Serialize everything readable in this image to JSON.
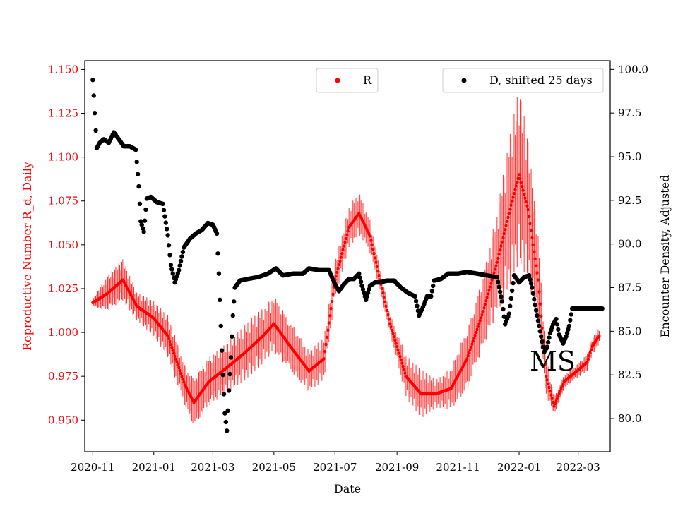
{
  "chart_data": {
    "type": "scatter",
    "xlabel": "Date",
    "ylabel_left": "Reproductive Number R_d, Daily",
    "ylabel_right": "Encounter Density, Adjusted",
    "ylim_left": [
      0.932,
      1.155
    ],
    "ylim_right": [
      78.1,
      100.5
    ],
    "xlim_days_from_start": [
      -8,
      517
    ],
    "left_axis_color": "#ff0000",
    "left_ticks": [
      "0.950",
      "0.975",
      "1.000",
      "1.025",
      "1.050",
      "1.075",
      "1.100",
      "1.125",
      "1.150"
    ],
    "right_ticks": [
      "80.0",
      "82.5",
      "85.0",
      "87.5",
      "90.0",
      "92.5",
      "95.0",
      "97.5",
      "100.0"
    ],
    "x_tick_labels": [
      "2020-11",
      "2021-01",
      "2021-03",
      "2021-05",
      "2021-07",
      "2021-09",
      "2021-11",
      "2022-01",
      "2022-03"
    ],
    "x_tick_dates": [
      "2020-11-01",
      "2021-01-01",
      "2021-03-01",
      "2021-05-01",
      "2021-07-01",
      "2021-09-01",
      "2021-11-01",
      "2022-01-01",
      "2022-03-01"
    ],
    "grid": false,
    "annotation": "MS",
    "legend_r": {
      "label": "R",
      "color": "#ff0000",
      "placement": "top-center"
    },
    "legend_d": {
      "label": "D, shifted 25 days",
      "color": "#000000",
      "placement": "top-right"
    },
    "series": [
      {
        "name": "R",
        "axis": "left",
        "color": "#ff0000",
        "marker": "point with weekly error bars",
        "points": [
          [
            "2020-11-01",
            1.017
          ],
          [
            "2020-11-15",
            1.022
          ],
          [
            "2020-12-01",
            1.03
          ],
          [
            "2020-12-15",
            1.015
          ],
          [
            "2021-01-01",
            1.008
          ],
          [
            "2021-01-15",
            0.998
          ],
          [
            "2021-02-01",
            0.97
          ],
          [
            "2021-02-10",
            0.96
          ],
          [
            "2021-02-25",
            0.972
          ],
          [
            "2021-03-15",
            0.98
          ],
          [
            "2021-04-01",
            0.988
          ],
          [
            "2021-04-20",
            0.998
          ],
          [
            "2021-05-01",
            1.005
          ],
          [
            "2021-05-20",
            0.99
          ],
          [
            "2021-06-05",
            0.978
          ],
          [
            "2021-06-20",
            0.985
          ],
          [
            "2021-07-01",
            1.03
          ],
          [
            "2021-07-15",
            1.06
          ],
          [
            "2021-07-25",
            1.068
          ],
          [
            "2021-08-05",
            1.055
          ],
          [
            "2021-08-15",
            1.03
          ],
          [
            "2021-08-25",
            1.005
          ],
          [
            "2021-09-10",
            0.975
          ],
          [
            "2021-09-25",
            0.965
          ],
          [
            "2021-10-10",
            0.965
          ],
          [
            "2021-10-25",
            0.968
          ],
          [
            "2021-11-10",
            0.985
          ],
          [
            "2021-11-25",
            1.01
          ],
          [
            "2021-12-10",
            1.04
          ],
          [
            "2021-12-25",
            1.075
          ],
          [
            "2022-01-01",
            1.09
          ],
          [
            "2022-01-10",
            1.07
          ],
          [
            "2022-01-20",
            1.03
          ],
          [
            "2022-01-28",
            0.975
          ],
          [
            "2022-02-05",
            0.958
          ],
          [
            "2022-02-15",
            0.972
          ],
          [
            "2022-02-28",
            0.978
          ],
          [
            "2022-03-10",
            0.983
          ],
          [
            "2022-03-15",
            0.992
          ],
          [
            "2022-03-22",
            0.998
          ]
        ],
        "error_half_width": [
          0.002,
          0.01,
          0.012,
          0.008,
          0.01,
          0.012,
          0.012,
          0.014,
          0.014,
          0.014,
          0.016,
          0.016,
          0.016,
          0.014,
          0.012,
          0.012,
          0.01,
          0.012,
          0.012,
          0.01,
          0.006,
          0.006,
          0.012,
          0.014,
          0.008,
          0.012,
          0.018,
          0.02,
          0.03,
          0.045,
          0.05,
          0.04,
          0.025,
          0.012,
          0.005,
          0.004,
          0.004,
          0.005,
          0.005,
          0.005
        ]
      },
      {
        "name": "D, shifted 25 days",
        "axis": "right",
        "color": "#000000",
        "marker": "dot",
        "points": [
          [
            "2020-11-01",
            99.4
          ],
          [
            "2020-11-02",
            98.5
          ],
          [
            "2020-11-03",
            97.5
          ],
          [
            "2020-11-04",
            96.5
          ],
          [
            "2020-11-05",
            95.5
          ],
          [
            "2020-11-08",
            95.8
          ],
          [
            "2020-11-12",
            96.0
          ],
          [
            "2020-11-17",
            95.8
          ],
          [
            "2020-11-22",
            96.4
          ],
          [
            "2020-11-27",
            96.0
          ],
          [
            "2020-12-02",
            95.6
          ],
          [
            "2020-12-08",
            95.6
          ],
          [
            "2020-12-14",
            95.4
          ],
          [
            "2020-12-17",
            93.3
          ],
          [
            "2020-12-19",
            91.3
          ],
          [
            "2020-12-22",
            90.7
          ],
          [
            "2020-12-25",
            92.6
          ],
          [
            "2020-12-29",
            92.7
          ],
          [
            "2021-01-04",
            92.4
          ],
          [
            "2021-01-10",
            92.3
          ],
          [
            "2021-01-15",
            90.5
          ],
          [
            "2021-01-18",
            88.8
          ],
          [
            "2021-01-22",
            87.8
          ],
          [
            "2021-01-26",
            88.5
          ],
          [
            "2021-01-31",
            89.8
          ],
          [
            "2021-02-06",
            90.3
          ],
          [
            "2021-02-12",
            90.6
          ],
          [
            "2021-02-18",
            90.8
          ],
          [
            "2021-02-24",
            91.2
          ],
          [
            "2021-03-01",
            91.1
          ],
          [
            "2021-03-05",
            90.6
          ],
          [
            "2021-03-07",
            88.3
          ],
          [
            "2021-03-09",
            85.3
          ],
          [
            "2021-03-11",
            82.5
          ],
          [
            "2021-03-13",
            80.3
          ],
          [
            "2021-03-15",
            79.3
          ],
          [
            "2021-03-17",
            81.6
          ],
          [
            "2021-03-19",
            83.5
          ],
          [
            "2021-03-21",
            85.9
          ],
          [
            "2021-03-23",
            87.5
          ],
          [
            "2021-03-28",
            87.9
          ],
          [
            "2021-04-05",
            88.0
          ],
          [
            "2021-04-15",
            88.1
          ],
          [
            "2021-04-25",
            88.3
          ],
          [
            "2021-05-03",
            88.6
          ],
          [
            "2021-05-10",
            88.2
          ],
          [
            "2021-05-20",
            88.3
          ],
          [
            "2021-05-30",
            88.3
          ],
          [
            "2021-06-05",
            88.6
          ],
          [
            "2021-06-15",
            88.5
          ],
          [
            "2021-06-25",
            88.5
          ],
          [
            "2021-07-01",
            87.7
          ],
          [
            "2021-07-05",
            87.3
          ],
          [
            "2021-07-10",
            87.7
          ],
          [
            "2021-07-15",
            88.0
          ],
          [
            "2021-07-20",
            88.0
          ],
          [
            "2021-07-25",
            88.3
          ],
          [
            "2021-07-28",
            87.6
          ],
          [
            "2021-08-01",
            86.8
          ],
          [
            "2021-08-05",
            87.6
          ],
          [
            "2021-08-10",
            87.8
          ],
          [
            "2021-08-15",
            87.8
          ],
          [
            "2021-08-22",
            87.9
          ],
          [
            "2021-08-29",
            87.9
          ],
          [
            "2021-09-05",
            87.5
          ],
          [
            "2021-09-12",
            87.2
          ],
          [
            "2021-09-19",
            87.0
          ],
          [
            "2021-09-23",
            85.9
          ],
          [
            "2021-09-27",
            86.4
          ],
          [
            "2021-10-01",
            87.0
          ],
          [
            "2021-10-05",
            87.0
          ],
          [
            "2021-10-08",
            87.9
          ],
          [
            "2021-10-15",
            88.0
          ],
          [
            "2021-10-22",
            88.3
          ],
          [
            "2021-11-01",
            88.3
          ],
          [
            "2021-11-10",
            88.4
          ],
          [
            "2021-11-20",
            88.3
          ],
          [
            "2021-11-30",
            88.2
          ],
          [
            "2021-12-10",
            88.1
          ],
          [
            "2021-12-15",
            86.7
          ],
          [
            "2021-12-18",
            85.4
          ],
          [
            "2021-12-22",
            86.0
          ],
          [
            "2021-12-27",
            88.2
          ],
          [
            "2022-01-01",
            87.8
          ],
          [
            "2022-01-06",
            88.1
          ],
          [
            "2022-01-11",
            88.2
          ],
          [
            "2022-01-14",
            87.5
          ],
          [
            "2022-01-17",
            86.5
          ],
          [
            "2022-01-20",
            85.6
          ],
          [
            "2022-01-23",
            84.7
          ],
          [
            "2022-01-26",
            83.8
          ],
          [
            "2022-01-29",
            84.1
          ],
          [
            "2022-02-01",
            84.9
          ],
          [
            "2022-02-04",
            85.4
          ],
          [
            "2022-02-07",
            85.7
          ],
          [
            "2022-02-10",
            84.8
          ],
          [
            "2022-02-14",
            84.3
          ],
          [
            "2022-02-17",
            84.7
          ],
          [
            "2022-02-20",
            85.3
          ],
          [
            "2022-02-23",
            86.3
          ],
          [
            "2022-03-01",
            86.3
          ],
          [
            "2022-03-08",
            86.3
          ],
          [
            "2022-03-15",
            86.3
          ],
          [
            "2022-03-21",
            86.3
          ],
          [
            "2022-03-25",
            86.3
          ]
        ]
      }
    ]
  }
}
